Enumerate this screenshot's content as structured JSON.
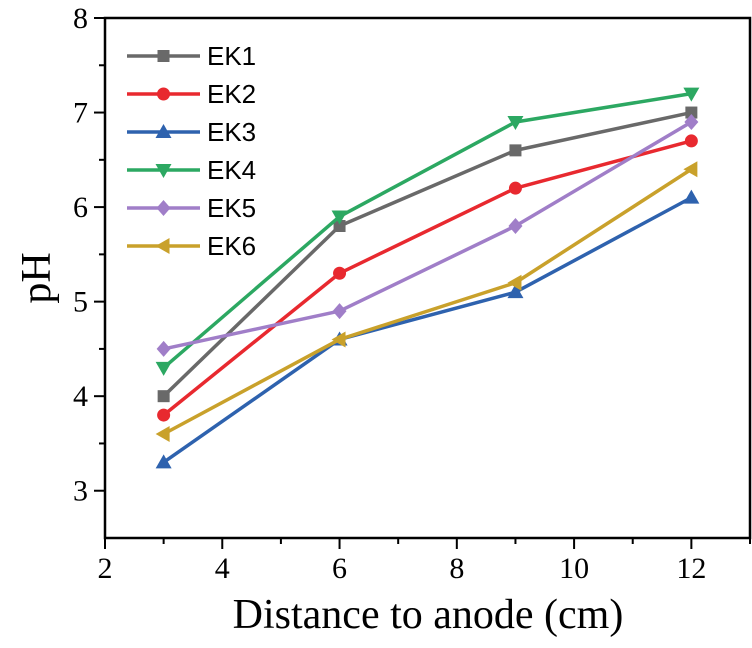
{
  "chart_data": {
    "type": "line",
    "title": "",
    "xlabel": "Distance to anode (cm)",
    "ylabel": "pH",
    "xlim": [
      2,
      13
    ],
    "ylim": [
      2.5,
      8
    ],
    "xticks": [
      2,
      4,
      6,
      8,
      10,
      12
    ],
    "yticks": [
      3,
      4,
      5,
      6,
      7,
      8
    ],
    "x": [
      3,
      6,
      9,
      12
    ],
    "grid": false,
    "legend_position": "top-left",
    "series": [
      {
        "name": "EK1",
        "values": [
          4.0,
          5.8,
          6.6,
          7.0
        ],
        "color": "#696969",
        "marker": "square"
      },
      {
        "name": "EK2",
        "values": [
          3.8,
          5.3,
          6.2,
          6.7
        ],
        "color": "#e8292f",
        "marker": "circle"
      },
      {
        "name": "EK3",
        "values": [
          3.3,
          4.6,
          5.1,
          6.1
        ],
        "color": "#2e62ae",
        "marker": "triangle-up"
      },
      {
        "name": "EK4",
        "values": [
          4.3,
          5.9,
          6.9,
          7.2
        ],
        "color": "#2ca862",
        "marker": "triangle-down"
      },
      {
        "name": "EK5",
        "values": [
          4.5,
          4.9,
          5.8,
          6.9
        ],
        "color": "#a07ec8",
        "marker": "diamond"
      },
      {
        "name": "EK6",
        "values": [
          3.6,
          4.6,
          5.2,
          6.4
        ],
        "color": "#c9a12b",
        "marker": "triangle-left"
      }
    ]
  }
}
